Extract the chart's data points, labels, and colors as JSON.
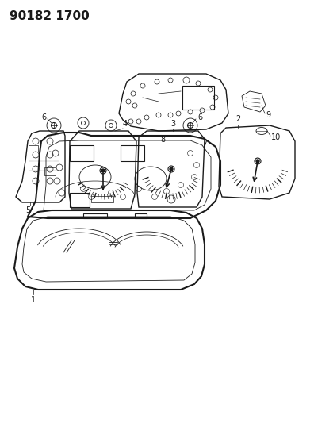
{
  "title": "90182 1700",
  "bg_color": "#ffffff",
  "line_color": "#1a1a1a",
  "title_fontsize": 11,
  "title_fontweight": "bold",
  "fig_width": 3.96,
  "fig_height": 5.33,
  "dpi": 100
}
